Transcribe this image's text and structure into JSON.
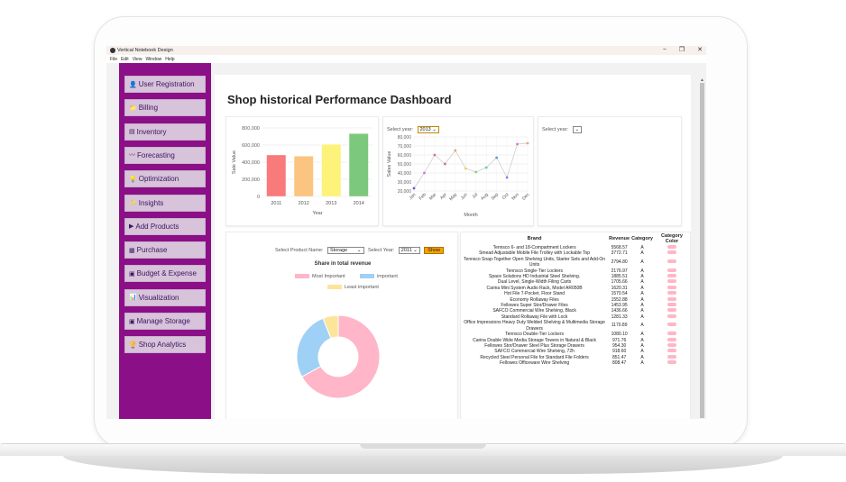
{
  "window": {
    "title": "Vertical Notebook Design",
    "controls": [
      "−",
      "❐",
      "✕"
    ]
  },
  "menu": [
    "File",
    "Edit",
    "View",
    "Window",
    "Help"
  ],
  "sidebar": {
    "items": [
      {
        "label": "User Registration",
        "icon": "user-icon",
        "glyph": "👤"
      },
      {
        "label": "Billing",
        "icon": "folder-icon",
        "glyph": "📁"
      },
      {
        "label": "Inventory",
        "icon": "inventory-icon",
        "glyph": "▤"
      },
      {
        "label": "Forecasting",
        "icon": "trend-icon",
        "glyph": "〰"
      },
      {
        "label": "Optimization",
        "icon": "bulb-icon",
        "glyph": "💡"
      },
      {
        "label": "Insights",
        "icon": "sparkle-icon",
        "glyph": "✨"
      },
      {
        "label": "Add Products",
        "icon": "flag-icon",
        "glyph": "▶"
      },
      {
        "label": "Purchase",
        "icon": "grid-icon",
        "glyph": "▦"
      },
      {
        "label": "Budget & Expense",
        "icon": "calculator-icon",
        "glyph": "▣"
      },
      {
        "label": "Visualization",
        "icon": "chart-icon",
        "glyph": "📊"
      },
      {
        "label": "Manage Storage",
        "icon": "storage-icon",
        "glyph": "▣"
      },
      {
        "label": "Shop Analytics",
        "icon": "analytics-icon",
        "glyph": "🏆"
      }
    ]
  },
  "page": {
    "title": "Shop historical Performance Dashboard"
  },
  "monthly_panel": {
    "select_label": "Select year:",
    "selected_year": "2013"
  },
  "third_panel": {
    "select_label": "Select year:",
    "selected_year": ""
  },
  "pie_panel": {
    "product_label": "Select Product Name:",
    "product_value": "Storage",
    "year_label": "Select Year:",
    "year_value": "2011",
    "show_label": "Show"
  },
  "colors": {
    "sidebar": "#8b0f86",
    "nav_item": "#d7c3da",
    "show_button": "#f4a300",
    "most_important": "#ffb6c8",
    "important": "#9fd0f5",
    "least_important": "#fbe59a"
  },
  "chart_data": [
    {
      "type": "bar",
      "ylabel": "Sale Value",
      "xlabel": "Year",
      "categories": [
        "2011",
        "2012",
        "2013",
        "2014"
      ],
      "values": [
        484000,
        470000,
        608000,
        733000
      ],
      "colors": [
        "#f87a7a",
        "#fbc480",
        "#fdf27a",
        "#7cc87c"
      ],
      "yticks": [
        "800,000",
        "600,000",
        "400,000",
        "200,000",
        "0"
      ],
      "ylim": [
        0,
        800000
      ],
      "grid": true
    },
    {
      "type": "line",
      "ylabel": "Sales Value",
      "xlabel": "Month",
      "categories": [
        "Jan",
        "Feb",
        "Mar",
        "Apr",
        "May",
        "Jun",
        "Jul",
        "Aug",
        "Sep",
        "Oct",
        "Nov",
        "Dec"
      ],
      "values": [
        23000,
        40000,
        60000,
        50000,
        65000,
        45000,
        41000,
        46000,
        57000,
        35000,
        72000,
        73000
      ],
      "point_colors": [
        "#5a5ad8",
        "#c87ae0",
        "#d86aa0",
        "#d86a8a",
        "#f0a060",
        "#f0d060",
        "#8ad070",
        "#60c8c8",
        "#5a9ad8",
        "#a070e0",
        "#e070c8",
        "#f0a080"
      ],
      "yticks": [
        "80,000",
        "70,000",
        "60,000",
        "50,000",
        "40,000",
        "30,000",
        "20,000"
      ],
      "ylim": [
        20000,
        80000
      ],
      "grid": true
    },
    {
      "type": "pie",
      "title": "Share in total revenue",
      "labels": [
        "Most Important",
        "important",
        "Least important"
      ],
      "values": [
        67,
        27,
        6
      ],
      "colors": [
        "#ffb6c8",
        "#9fd0f5",
        "#fbe59a"
      ],
      "legend": "top"
    },
    {
      "type": "table",
      "columns": [
        "Brand",
        "Revenue",
        "Category",
        "Category Color"
      ],
      "rows": [
        [
          "Tennsco 6- and 18-Compartment Lockers",
          "5568.57",
          "A"
        ],
        [
          "Smead Adjustable Mobile File Trolley with Lockable Top",
          "3772.71",
          "A"
        ],
        [
          "Tennsco Snap-Together Open Shelving Units, Starter Sets and Add-On Units",
          "2794.80",
          "A"
        ],
        [
          "Tennsco Single-Tier Lockers",
          "2176.97",
          "A"
        ],
        [
          "Space Solutions HD Industrial Steel Shelving.",
          "1885.51",
          "A"
        ],
        [
          "Dual Level, Single-Width Filing Carts",
          "1705.66",
          "A"
        ],
        [
          "Carina Mini System Audio Rack, Model AR050B",
          "1620.31",
          "A"
        ],
        [
          "Hot File 7-Pocket, Floor Stand",
          "1570.54",
          "A"
        ],
        [
          "Economy Rollaway Files",
          "1552.88",
          "A"
        ],
        [
          "Fellowes Super Stor/Drawer Files",
          "1453.95",
          "A"
        ],
        [
          "SAFCO Commercial Wire Shelving, Black",
          "1436.66",
          "A"
        ],
        [
          "Standard Rollaway File with Lock",
          "1281.33",
          "A"
        ],
        [
          "Office Impressions Heavy Duty Welded Shelving & Multimedia Storage Drawers",
          "1170.89",
          "A"
        ],
        [
          "Tennsco Double-Tier Lockers",
          "1080.10",
          "A"
        ],
        [
          "Carina Double Wide Media Storage Towers in Natural & Black",
          "971.76",
          "A"
        ],
        [
          "Fellowes Stor/Drawer Steel Plus Storage Drawers",
          "954.30",
          "A"
        ],
        [
          "SAFCO Commercial Wire Shelving, 72h",
          "918.60",
          "A"
        ],
        [
          "Recycled Steel Personal File for Standard File Folders",
          "851.47",
          "A"
        ],
        [
          "Fellowes Officeware Wire Shelving",
          "808.47",
          "A"
        ]
      ]
    }
  ]
}
